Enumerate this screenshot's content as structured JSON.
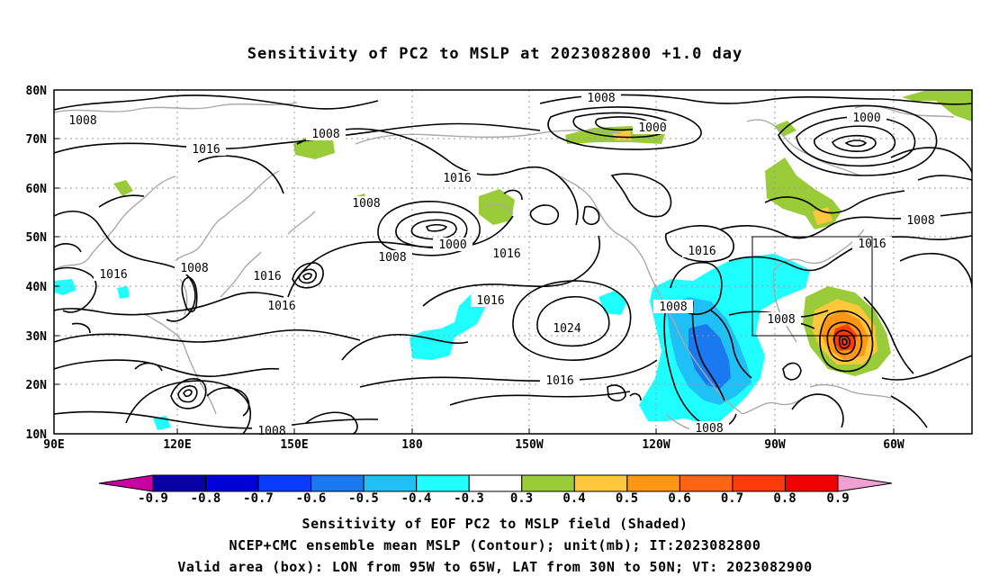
{
  "title": "Sensitivity of PC2 to MSLP at 2023082800 +1.0 day",
  "lat_labels": [
    "80N",
    "70N",
    "60N",
    "50N",
    "40N",
    "30N",
    "20N",
    "10N"
  ],
  "lon_labels": [
    "90E",
    "120E",
    "150E",
    "180",
    "150W",
    "120W",
    "90W",
    "60W"
  ],
  "contour_labels": {
    "c1008_a": "1008",
    "c1008_b": "1008",
    "c1008_c": "1008",
    "c1008_d": "1008",
    "c1008_e": "1008",
    "c1008_f": "1008",
    "c1008_g": "1008",
    "c1008_h": "1008",
    "c1008_i": "1008",
    "c1008_j": "1008",
    "c1008_k": "1008",
    "c1016_a": "1016",
    "c1016_b": "1016",
    "c1016_c": "1016",
    "c1016_d": "1016",
    "c1016_e": "1016",
    "c1016_f": "1016",
    "c1016_g": "1016",
    "c1016_h": "1016",
    "c1016_i": "1016",
    "c1000_a": "1000",
    "c1000_b": "1000",
    "c1000_c": "1000",
    "c1024_a": "1024"
  },
  "colorbar": {
    "labels": [
      "-0.9",
      "-0.8",
      "-0.7",
      "-0.6",
      "-0.5",
      "-0.4",
      "-0.3",
      "0.3",
      "0.4",
      "0.5",
      "0.6",
      "0.7",
      "0.8",
      "0.9"
    ],
    "colors": [
      "#0a00a8",
      "#0000d8",
      "#0a3cff",
      "#1a78f0",
      "#1ec0f5",
      "#20ffff",
      "#ffffff",
      "#9acb38",
      "#ffc83c",
      "#ff9614",
      "#ff6414",
      "#ff3a0a",
      "#f00000"
    ],
    "low_end_color": "#c800a0",
    "high_end_color": "#f0a0d2"
  },
  "caption": {
    "line1": "Sensitivity of EOF PC2 to MSLP field (Shaded)",
    "line2": "NCEP+CMC ensemble mean MSLP (Contour); unit(mb); IT:2023082800",
    "line3": "Valid area (box): LON from 95W to 65W, LAT from 30N to 50N; VT: 2023082900"
  },
  "valid_box": {
    "lon_west": "95W",
    "lon_east": "65W",
    "lat_south": "30N",
    "lat_north": "50N"
  }
}
